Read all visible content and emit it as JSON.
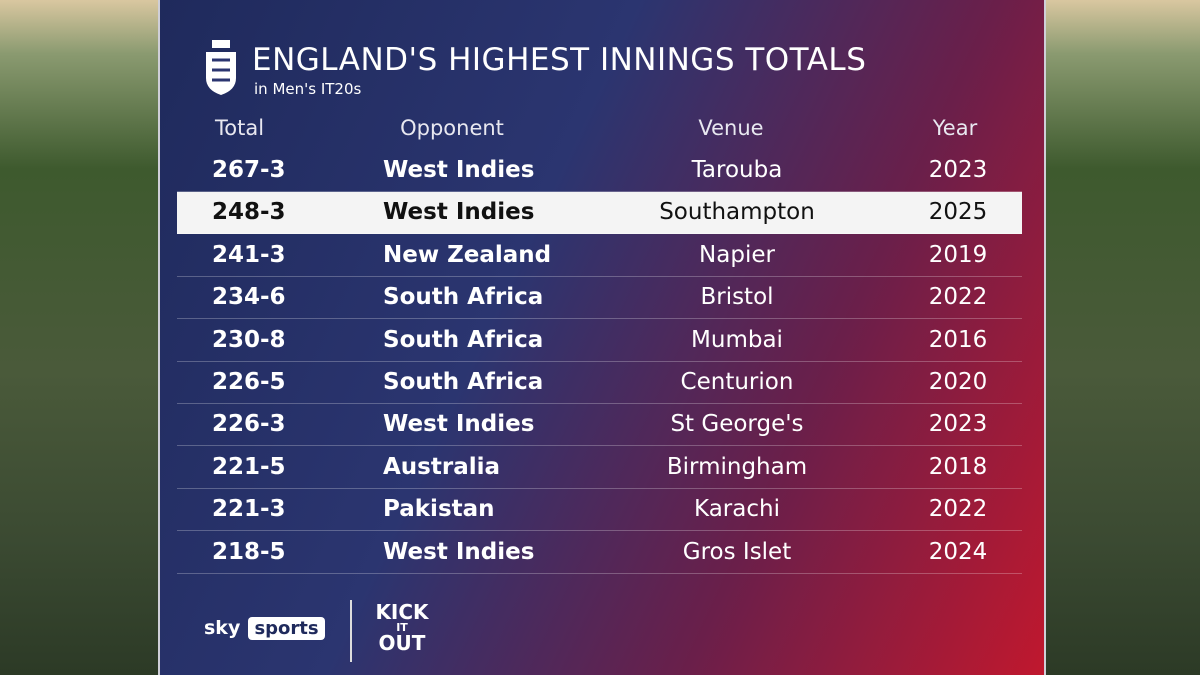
{
  "header": {
    "title": "ENGLAND'S HIGHEST INNINGS TOTALS",
    "subtitle": "in Men's IT20s"
  },
  "table": {
    "columns": [
      "Total",
      "Opponent",
      "Venue",
      "Year"
    ],
    "rows": [
      [
        "267-3",
        "West Indies",
        "Tarouba",
        2023
      ],
      [
        "248-3",
        "West Indies",
        "Southampton",
        2025
      ],
      [
        "241-3",
        "New Zealand",
        "Napier",
        2019
      ],
      [
        "234-6",
        "South Africa",
        "Bristol",
        2022
      ],
      [
        "230-8",
        "South Africa",
        "Mumbai",
        2016
      ],
      [
        "226-5",
        "South Africa",
        "Centurion",
        2020
      ],
      [
        "226-3",
        "West Indies",
        "St George's",
        2023
      ],
      [
        "221-5",
        "Australia",
        "Birmingham",
        2018
      ],
      [
        "221-3",
        "Pakistan",
        "Karachi",
        2022
      ],
      [
        "218-5",
        "West Indies",
        "Gros Islet",
        2024
      ]
    ],
    "highlight_row": 1
  },
  "footer": {
    "sky": "sky",
    "sports": "sports",
    "kick": "KICK",
    "it": "IT",
    "out": "OUT"
  }
}
